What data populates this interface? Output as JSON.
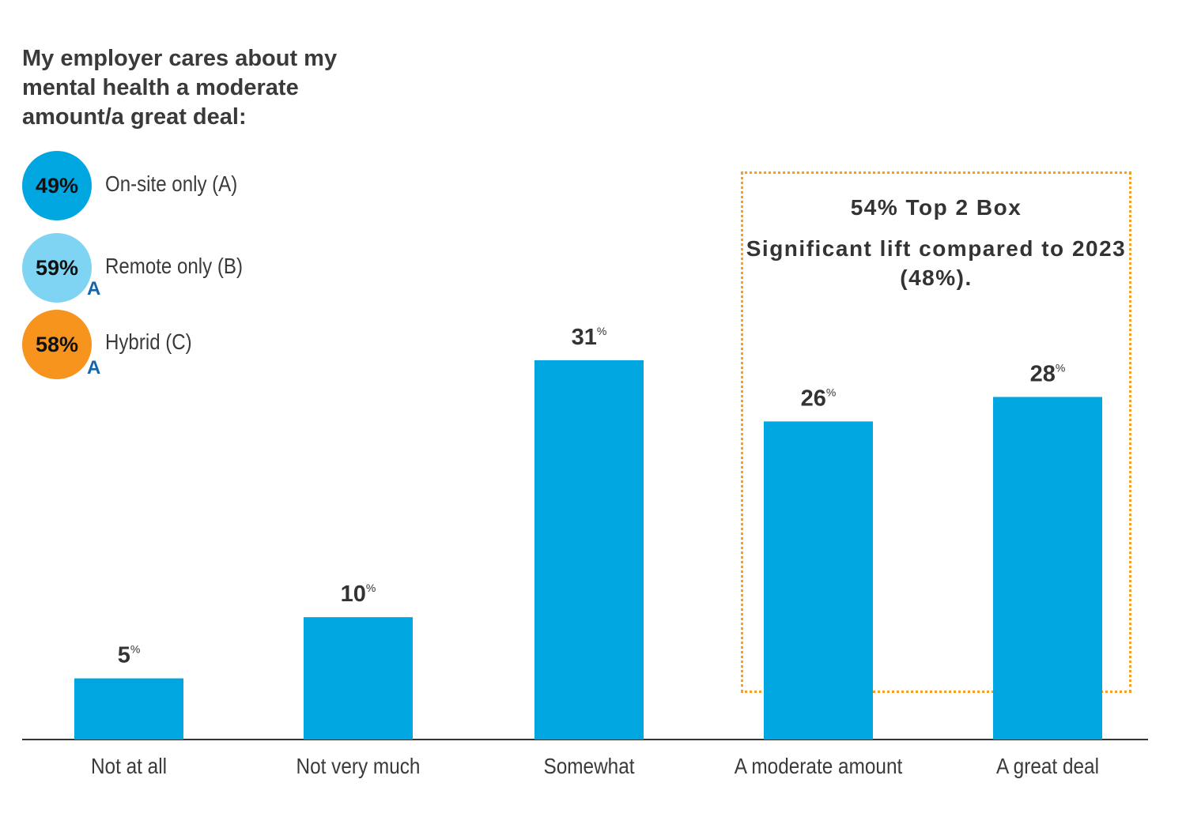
{
  "title": "My employer cares about my mental health a moderate amount/a great deal:",
  "segments": [
    {
      "value": "49%",
      "label": "On-site only (A)",
      "color": "#00a6e0",
      "sig": ""
    },
    {
      "value": "59%",
      "label": "Remote only (B)",
      "color": "#7fd3f3",
      "sig": "A"
    },
    {
      "value": "58%",
      "label": "Hybrid (C)",
      "color": "#f7941d",
      "sig": "A"
    }
  ],
  "annotation": {
    "line1": "54% Top 2 Box",
    "line2": "Significant lift compared to 2023 (48%)."
  },
  "chart_data": {
    "type": "bar",
    "categories": [
      "Not at all",
      "Not very much",
      "Somewhat",
      "A moderate amount",
      "A great deal"
    ],
    "values": [
      5,
      10,
      31,
      26,
      28
    ],
    "value_suffix": "%",
    "bar_color": "#00a6e0",
    "ylim": [
      0,
      31
    ],
    "grid": false,
    "legend": "none"
  }
}
